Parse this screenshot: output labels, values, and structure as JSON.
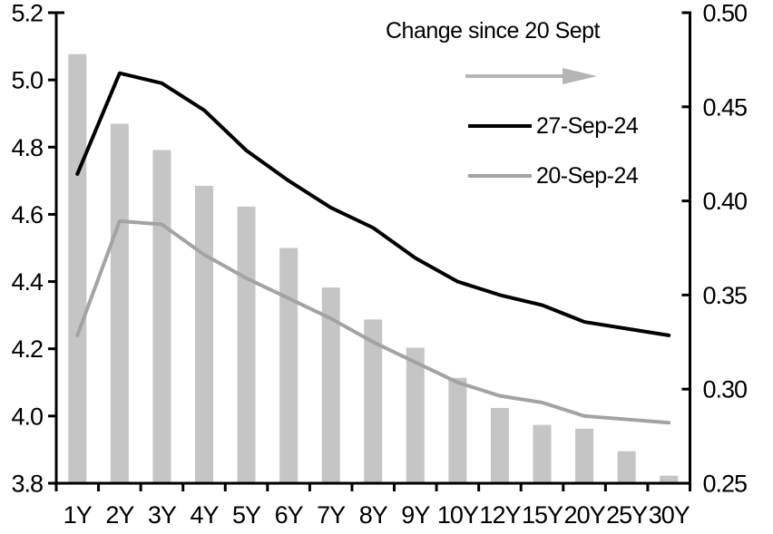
{
  "chart_data": {
    "type": "combo-bar-line",
    "title": "",
    "categories": [
      "1Y",
      "2Y",
      "3Y",
      "4Y",
      "5Y",
      "6Y",
      "7Y",
      "8Y",
      "9Y",
      "10Y",
      "12Y",
      "15Y",
      "20Y",
      "25Y",
      "30Y"
    ],
    "series": [
      {
        "name": "27-Sep-24",
        "type": "line",
        "axis": "left",
        "color": "#000000",
        "values": [
          4.72,
          5.02,
          4.99,
          4.91,
          4.79,
          4.7,
          4.62,
          4.56,
          4.47,
          4.4,
          4.36,
          4.33,
          4.28,
          4.26,
          4.24
        ]
      },
      {
        "name": "20-Sep-24",
        "type": "line",
        "axis": "left",
        "color": "#a3a3a3",
        "values": [
          4.24,
          4.58,
          4.57,
          4.48,
          4.41,
          4.35,
          4.29,
          4.22,
          4.16,
          4.1,
          4.06,
          4.04,
          4.0,
          3.99,
          3.98
        ]
      },
      {
        "name": "Change since 20 Sept",
        "type": "bar",
        "axis": "right",
        "color": "#c5c5c5",
        "values": [
          0.478,
          0.441,
          0.427,
          0.408,
          0.397,
          0.375,
          0.354,
          0.337,
          0.322,
          0.306,
          0.29,
          0.281,
          0.279,
          0.267,
          0.254
        ]
      }
    ],
    "left_axis": {
      "min": 3.8,
      "max": 5.2,
      "tick_labels": [
        "5.2",
        "5.0",
        "4.8",
        "4.6",
        "4.4",
        "4.2",
        "4.0",
        "3.8"
      ]
    },
    "right_axis": {
      "min": 0.25,
      "max": 0.5,
      "tick_labels": [
        "0.50",
        "0.45",
        "0.40",
        "0.35",
        "0.30",
        "0.25"
      ]
    },
    "grid": false,
    "legend_position": "top-right",
    "legend": {
      "bar_series_label": "Change since 20 Sept",
      "arrow_icon": "right-arrow",
      "arrow_color": "#b5b5b5",
      "entries": [
        {
          "label": "27-Sep-24"
        },
        {
          "label": "20-Sep-24"
        }
      ]
    },
    "colors": {
      "axis": "#000000",
      "background": "#ffffff"
    }
  }
}
